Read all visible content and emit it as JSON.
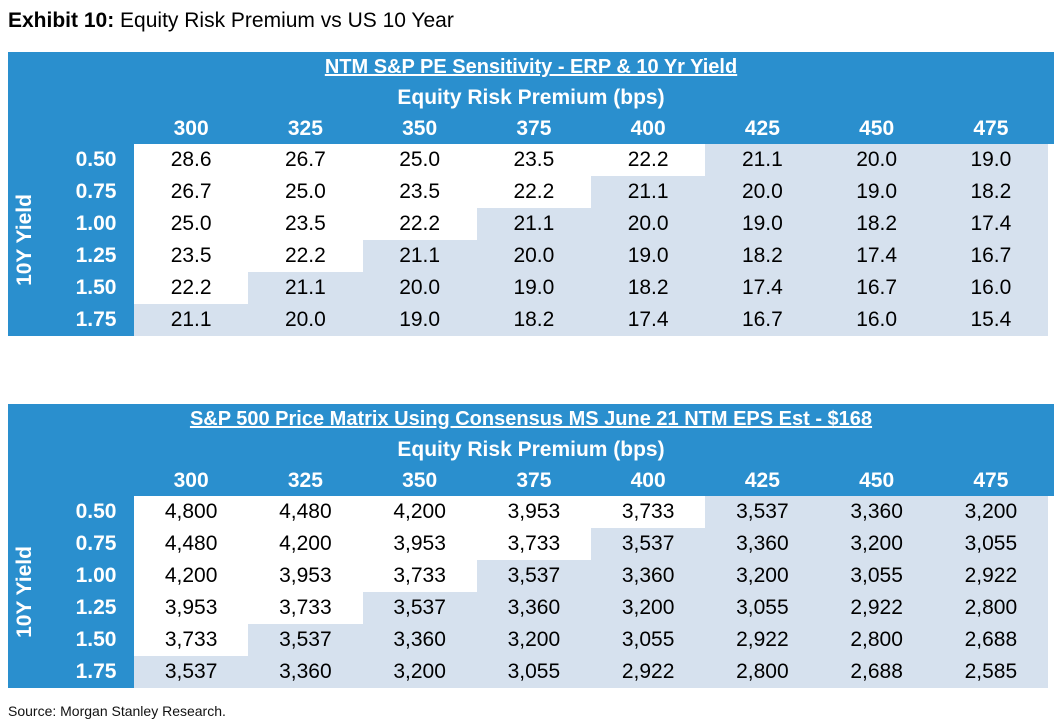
{
  "title": {
    "bold": "Exhibit 10:",
    "text": "Equity Risk Premium vs US 10 Year"
  },
  "tables": [
    {
      "title": "NTM S&P PE Sensitivity - ERP & 10 Yr Yield",
      "subtitle": "Equity Risk Premium (bps)",
      "side_label": "10Y Yield",
      "columns": [
        "300",
        "325",
        "350",
        "375",
        "400",
        "425",
        "450",
        "475"
      ],
      "rows": [
        {
          "label": "0.50",
          "values": [
            "28.6",
            "26.7",
            "25.0",
            "23.5",
            "22.2",
            "21.1",
            "20.0",
            "19.0"
          ],
          "highlight_from": 5
        },
        {
          "label": "0.75",
          "values": [
            "26.7",
            "25.0",
            "23.5",
            "22.2",
            "21.1",
            "20.0",
            "19.0",
            "18.2"
          ],
          "highlight_from": 4
        },
        {
          "label": "1.00",
          "values": [
            "25.0",
            "23.5",
            "22.2",
            "21.1",
            "20.0",
            "19.0",
            "18.2",
            "17.4"
          ],
          "highlight_from": 3
        },
        {
          "label": "1.25",
          "values": [
            "23.5",
            "22.2",
            "21.1",
            "20.0",
            "19.0",
            "18.2",
            "17.4",
            "16.7"
          ],
          "highlight_from": 2
        },
        {
          "label": "1.50",
          "values": [
            "22.2",
            "21.1",
            "20.0",
            "19.0",
            "18.2",
            "17.4",
            "16.7",
            "16.0"
          ],
          "highlight_from": 1
        },
        {
          "label": "1.75",
          "values": [
            "21.1",
            "20.0",
            "19.0",
            "18.2",
            "17.4",
            "16.7",
            "16.0",
            "15.4"
          ],
          "highlight_from": 0
        }
      ]
    },
    {
      "title": "S&P 500 Price Matrix Using Consensus MS June 21 NTM EPS Est - $168",
      "subtitle": "Equity Risk Premium (bps)",
      "side_label": "10Y Yield",
      "columns": [
        "300",
        "325",
        "350",
        "375",
        "400",
        "425",
        "450",
        "475"
      ],
      "rows": [
        {
          "label": "0.50",
          "values": [
            "4,800",
            "4,480",
            "4,200",
            "3,953",
            "3,733",
            "3,537",
            "3,360",
            "3,200"
          ],
          "highlight_from": 5
        },
        {
          "label": "0.75",
          "values": [
            "4,480",
            "4,200",
            "3,953",
            "3,733",
            "3,537",
            "3,360",
            "3,200",
            "3,055"
          ],
          "highlight_from": 4
        },
        {
          "label": "1.00",
          "values": [
            "4,200",
            "3,953",
            "3,733",
            "3,537",
            "3,360",
            "3,200",
            "3,055",
            "2,922"
          ],
          "highlight_from": 3
        },
        {
          "label": "1.25",
          "values": [
            "3,953",
            "3,733",
            "3,537",
            "3,360",
            "3,200",
            "3,055",
            "2,922",
            "2,800"
          ],
          "highlight_from": 2
        },
        {
          "label": "1.50",
          "values": [
            "3,733",
            "3,537",
            "3,360",
            "3,200",
            "3,055",
            "2,922",
            "2,800",
            "2,688"
          ],
          "highlight_from": 1
        },
        {
          "label": "1.75",
          "values": [
            "3,537",
            "3,360",
            "3,200",
            "3,055",
            "2,922",
            "2,800",
            "2,688",
            "2,585"
          ],
          "highlight_from": 0
        }
      ]
    }
  ],
  "source": "Source: Morgan Stanley Research.",
  "colors": {
    "header_bg": "#2a8fce",
    "highlight": "#d6e1ee"
  }
}
